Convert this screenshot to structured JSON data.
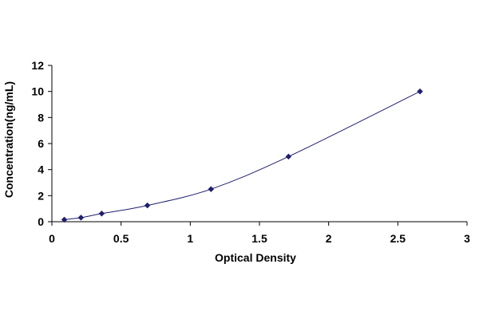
{
  "chart_data": {
    "type": "scatter",
    "title": "",
    "xlabel": "Optical Density",
    "ylabel": "Concentration(ng/mL)",
    "xlim": [
      0,
      3
    ],
    "ylim": [
      0,
      12
    ],
    "xticks": [
      0,
      0.5,
      1,
      1.5,
      2,
      2.5,
      3
    ],
    "yticks": [
      0,
      2,
      4,
      6,
      8,
      10,
      12
    ],
    "xtick_labels": [
      "0",
      "0.5",
      "1",
      "1.5",
      "2",
      "2.5",
      "3"
    ],
    "ytick_labels": [
      "0",
      "2",
      "4",
      "6",
      "8",
      "10",
      "12"
    ],
    "grid": false,
    "legend": "none",
    "series": [
      {
        "x": [
          0.09,
          0.21,
          0.36,
          0.69,
          1.15,
          1.71,
          2.66
        ],
        "y": [
          0.156,
          0.312,
          0.625,
          1.25,
          2.5,
          5,
          10
        ],
        "marker": "diamond",
        "color": "#1f1f6e",
        "line": "fitted-curve"
      }
    ]
  }
}
